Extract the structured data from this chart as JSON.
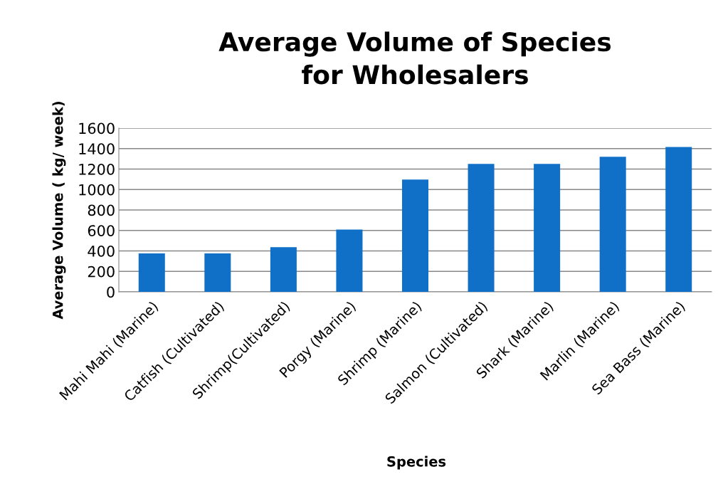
{
  "chart_data": {
    "type": "bar",
    "title": "Average Volume of Species\nfor Wholesalers",
    "xlabel": "Species",
    "ylabel": "Average Volume ( kg/ week)",
    "categories": [
      "Mahi Mahi (Marine)",
      "Catfish (Cultivated)",
      "Shrimp(Cultivated)",
      "Porgy (Marine)",
      "Shrimp (Marine)",
      "Salmon (Cultivated)",
      "Shark (Marine)",
      "Marlin (Marine)",
      "Sea Bass (Marine)"
    ],
    "values": [
      375,
      375,
      437,
      608,
      1098,
      1250,
      1250,
      1320,
      1415
    ],
    "color": "#1070c8",
    "ylim": [
      0,
      1600
    ],
    "yticks": [
      0,
      200,
      400,
      600,
      800,
      1000,
      1200,
      1400,
      1600
    ],
    "grid": "y",
    "legend": false
  }
}
